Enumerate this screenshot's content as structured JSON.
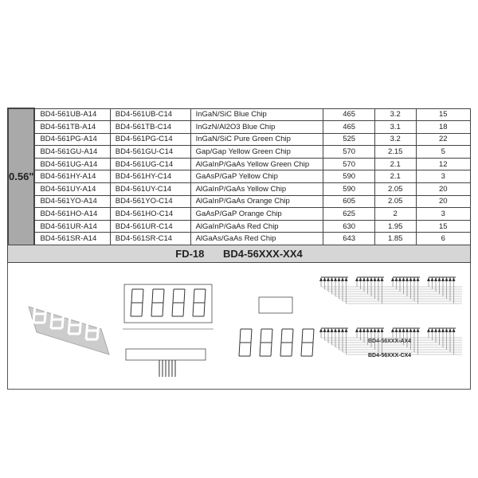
{
  "size_label": "0.56\"",
  "rows": [
    [
      "BD4-561UB-A14",
      "BD4-561UB-C14",
      "InGaN/SiC Blue Chip",
      "465",
      "3.2",
      "15"
    ],
    [
      "BD4-561TB-A14",
      "BD4-561TB-C14",
      "InGzN/Al2O3 Blue Chip",
      "465",
      "3.1",
      "18"
    ],
    [
      "BD4-561PG-A14",
      "BD4-561PG-C14",
      "InGaN/SiC Pure Green Chip",
      "525",
      "3.2",
      "22"
    ],
    [
      "BD4-561GU-A14",
      "BD4-561GU-C14",
      "Gap/Gap Yellow Green Chip",
      "570",
      "2.15",
      "5"
    ],
    [
      "BD4-561UG-A14",
      "BD4-561UG-C14",
      "AlGaInP/GaAs Yellow Green Chip",
      "570",
      "2.1",
      "12"
    ],
    [
      "BD4-561HY-A14",
      "BD4-561HY-C14",
      "GaAsP/GaP Yellow Chip",
      "590",
      "2.1",
      "3"
    ],
    [
      "BD4-561UY-A14",
      "BD4-561UY-C14",
      "AlGaInP/GaAs Yellow Chip",
      "590",
      "2.05",
      "20"
    ],
    [
      "BD4-561YO-A14",
      "BD4-561YO-C14",
      "AlGaInP/GaAs Orange Chip",
      "605",
      "2.05",
      "20"
    ],
    [
      "BD4-561HO-A14",
      "BD4-561HO-C14",
      "GaAsP/GaP Orange Chip",
      "625",
      "2",
      "3"
    ],
    [
      "BD4-561UR-A14",
      "BD4-561UR-C14",
      "AlGaInP/GaAs Red Chip",
      "630",
      "1.95",
      "15"
    ],
    [
      "BD4-561SR-A14",
      "BD4-561SR-C14",
      "AlGaAs/GaAs Red Chip",
      "643",
      "1.85",
      "6"
    ]
  ],
  "band": {
    "code": "FD-18",
    "model": "BD4-56XXX-XX4"
  },
  "diagrams": {
    "anode_label": "BD4-56XXX-AX4",
    "cathode_label": "BD4-56XXX-CX4"
  }
}
